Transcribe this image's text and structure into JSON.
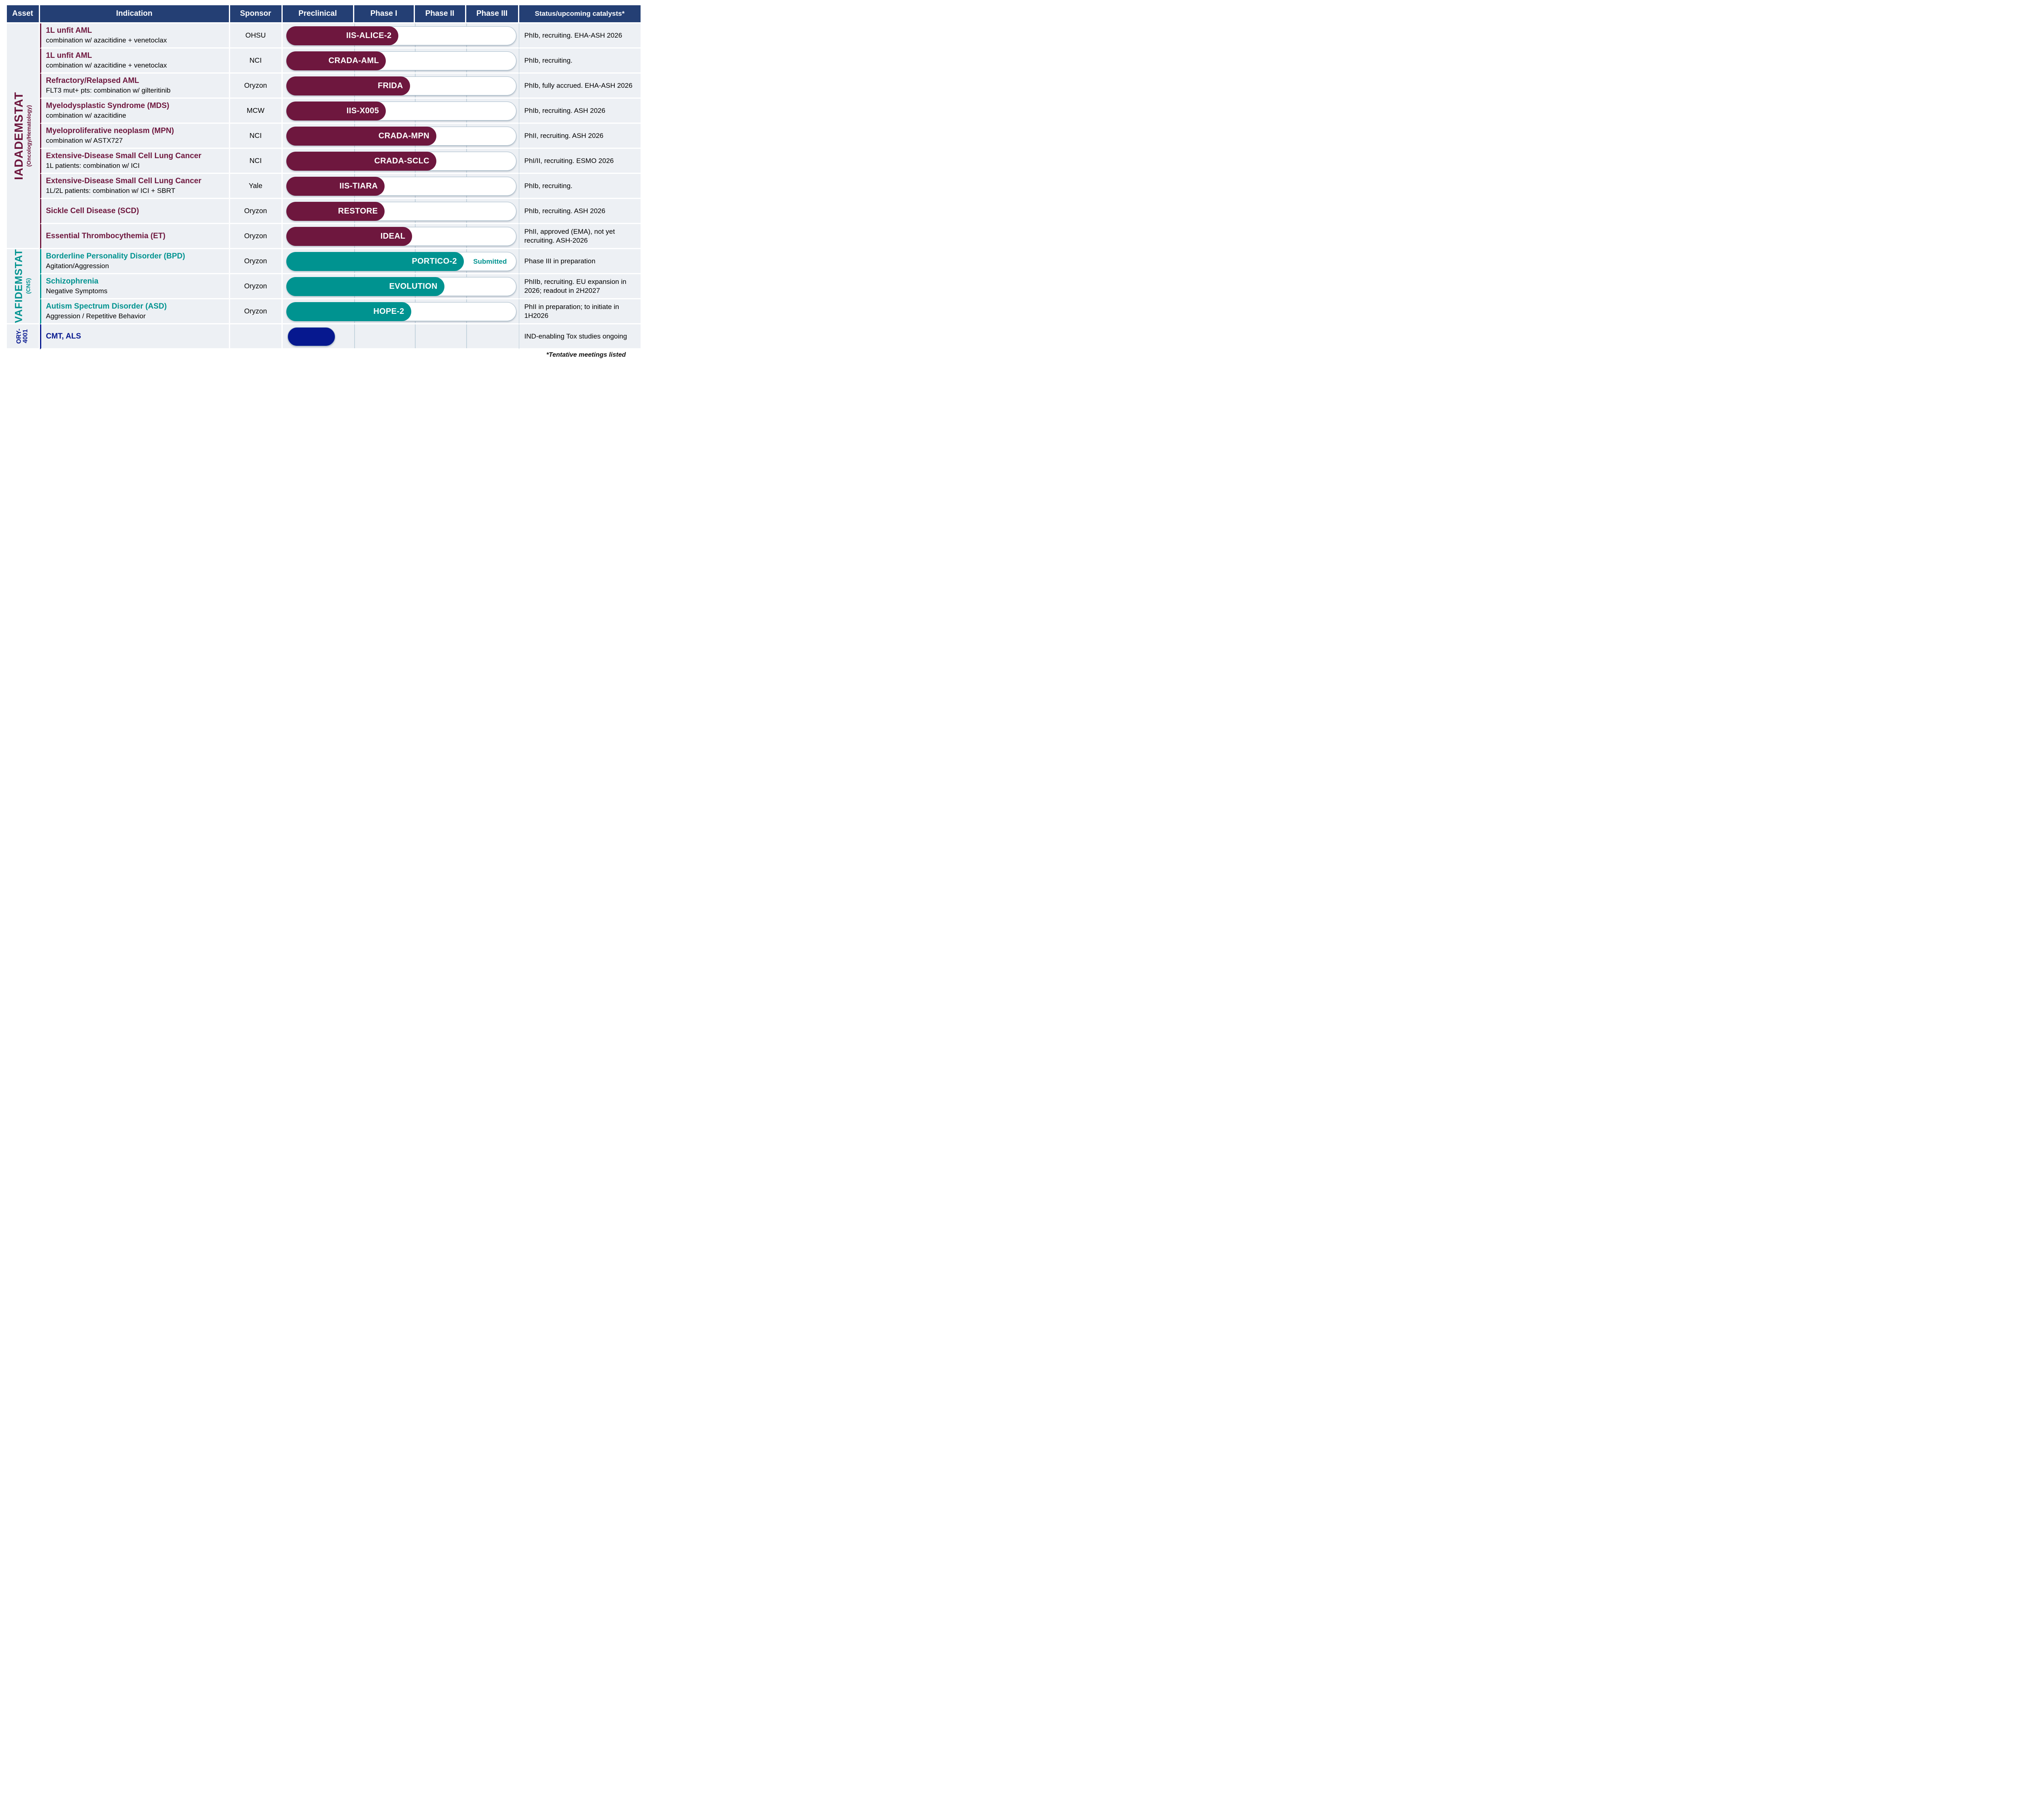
{
  "palette": {
    "header_blue": "#243F74",
    "maroon": "#6E173E",
    "teal": "#009390",
    "navy": "#06188F",
    "row_bg": "#EDF0F4",
    "grid_line": "#B9CBD7",
    "track_border": "#A8BCCB",
    "track_fill": "#FFFFFF",
    "header_text": "#FFFFFF",
    "bar_label_text": "#FFFFFF",
    "body_text": "#000000"
  },
  "header": {
    "columns": [
      "Asset",
      "Indication",
      "Sponsor",
      "Preclinical",
      "Phase I",
      "Phase II",
      "Phase III",
      "Status/upcoming catalysts*"
    ]
  },
  "asset_groups": [
    {
      "id": "iadademstat",
      "lines": [
        "IADADEMSTAT"
      ],
      "subtitle": "(Oncology/Hematology)",
      "color": "#6E173E",
      "row_span": 9
    },
    {
      "id": "vafidemstat",
      "lines": [
        "VAFIDEMSTAT"
      ],
      "subtitle": "(CNS)",
      "color": "#009390",
      "row_span": 3
    },
    {
      "id": "ory4001",
      "lines": [
        "ORY-",
        "4001"
      ],
      "subtitle": "",
      "color": "#06188F",
      "row_span": 1
    }
  ],
  "rows": [
    {
      "group": 0,
      "indication": "1L unfit AML",
      "subtitle": "combination w/ azacitidine + venetoclax",
      "sponsor": "OHSU",
      "trial": "IIS-ALICE-2",
      "fill_pct": 49,
      "has_track": true,
      "badge": "",
      "status": "PhIb, recruiting. EHA-ASH 2026"
    },
    {
      "group": 0,
      "indication": "1L unfit AML",
      "subtitle": "combination w/ azacitidine + venetoclax",
      "sponsor": "NCI",
      "trial": "CRADA-AML",
      "fill_pct": 43.5,
      "has_track": true,
      "badge": "",
      "status": "PhIb, recruiting."
    },
    {
      "group": 0,
      "indication": "Refractory/Relapsed AML",
      "subtitle": "FLT3 mut+ pts: combination w/ gilteritinib",
      "sponsor": "Oryzon",
      "trial": "FRIDA",
      "fill_pct": 54,
      "has_track": true,
      "badge": "",
      "status": "PhIb, fully accrued. EHA-ASH 2026"
    },
    {
      "group": 0,
      "indication": "Myelodysplastic Syndrome (MDS)",
      "subtitle": "combination w/ azacitidine",
      "sponsor": "MCW",
      "trial": "IIS-X005",
      "fill_pct": 43.5,
      "has_track": true,
      "badge": "",
      "status": "PhIb, recruiting. ASH 2026"
    },
    {
      "group": 0,
      "indication": "Myeloproliferative neoplasm (MPN)",
      "subtitle": "combination w/ ASTX727",
      "sponsor": "NCI",
      "trial": "CRADA-MPN",
      "fill_pct": 65.5,
      "has_track": true,
      "badge": "",
      "status": "PhII, recruiting. ASH 2026"
    },
    {
      "group": 0,
      "indication": "Extensive-Disease Small Cell Lung Cancer",
      "subtitle": "1L patients: combination w/ ICI",
      "sponsor": "NCI",
      "trial": "CRADA-SCLC",
      "fill_pct": 65.5,
      "has_track": true,
      "badge": "",
      "status": "PhI/II, recruiting. ESMO 2026"
    },
    {
      "group": 0,
      "indication": "Extensive-Disease Small Cell Lung Cancer",
      "subtitle": "1L/2L patients: combination w/ ICI + SBRT",
      "sponsor": "Yale",
      "trial": "IIS-TIARA",
      "fill_pct": 43,
      "has_track": true,
      "badge": "",
      "status": "PhIb, recruiting."
    },
    {
      "group": 0,
      "indication": "Sickle Cell Disease (SCD)",
      "subtitle": "",
      "sponsor": "Oryzon",
      "trial": "RESTORE",
      "fill_pct": 43,
      "has_track": true,
      "badge": "",
      "status": "PhIb, recruiting. ASH 2026"
    },
    {
      "group": 0,
      "indication": "Essential Thrombocythemia (ET)",
      "subtitle": "",
      "sponsor": "Oryzon",
      "trial": "IDEAL",
      "fill_pct": 55,
      "has_track": true,
      "badge": "",
      "status": "PhII, approved (EMA), not yet recruiting.  ASH-2026"
    },
    {
      "group": 1,
      "indication": "Borderline Personality Disorder (BPD)",
      "subtitle": "Agitation/Aggression",
      "sponsor": "Oryzon",
      "trial": "PORTICO-2",
      "fill_pct": 77.5,
      "has_track": true,
      "badge": "Submitted",
      "status": "Phase III in preparation"
    },
    {
      "group": 1,
      "indication": "Schizophrenia",
      "subtitle": "Negative Symptoms",
      "sponsor": "Oryzon",
      "trial": "EVOLUTION",
      "fill_pct": 69,
      "has_track": true,
      "badge": "",
      "status": "PhIIb, recruiting. EU expansion in 2026; readout in 2H2027"
    },
    {
      "group": 1,
      "indication": "Autism Spectrum Disorder (ASD)",
      "subtitle": "Aggression / Repetitive Behavior",
      "sponsor": "Oryzon",
      "trial": "HOPE-2",
      "fill_pct": 54.5,
      "has_track": true,
      "badge": "",
      "status": "PhII in preparation; to initiate in 1H2026"
    },
    {
      "group": 2,
      "indication": "CMT, ALS",
      "subtitle": "",
      "sponsor": "",
      "trial": "",
      "fill_pct": 20.5,
      "has_track": false,
      "badge": "",
      "status": "IND-enabling Tox studies ongoing"
    }
  ],
  "footnote": "*Tentative meetings listed"
}
